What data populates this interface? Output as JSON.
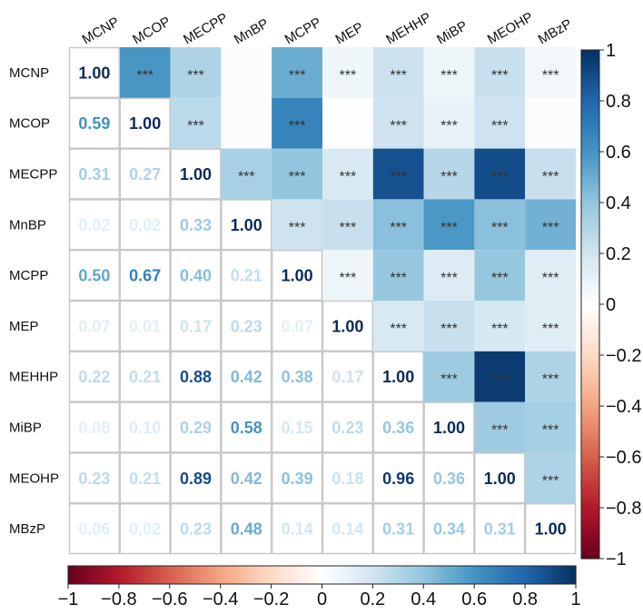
{
  "chart_data": {
    "type": "heatmap",
    "variables": [
      "MCNP",
      "MCOP",
      "MECPP",
      "MnBP",
      "MCPP",
      "MEP",
      "MEHHP",
      "MiBP",
      "MEOHP",
      "MBzP"
    ],
    "correlation_matrix": [
      [
        1.0,
        0.59,
        0.31,
        0.02,
        0.5,
        0.07,
        0.22,
        0.08,
        0.23,
        0.06
      ],
      [
        0.59,
        1.0,
        0.27,
        0.02,
        0.67,
        0.01,
        0.21,
        0.1,
        0.21,
        0.02
      ],
      [
        0.31,
        0.27,
        1.0,
        0.33,
        0.4,
        0.17,
        0.88,
        0.29,
        0.89,
        0.23
      ],
      [
        0.02,
        0.02,
        0.33,
        1.0,
        0.21,
        0.23,
        0.42,
        0.58,
        0.42,
        0.48
      ],
      [
        0.5,
        0.67,
        0.4,
        0.21,
        1.0,
        0.07,
        0.38,
        0.15,
        0.39,
        0.14
      ],
      [
        0.07,
        0.01,
        0.17,
        0.23,
        0.07,
        1.0,
        0.17,
        0.23,
        0.18,
        0.14
      ],
      [
        0.22,
        0.21,
        0.88,
        0.42,
        0.38,
        0.17,
        1.0,
        0.36,
        0.96,
        0.31
      ],
      [
        0.08,
        0.1,
        0.29,
        0.58,
        0.15,
        0.23,
        0.36,
        1.0,
        0.36,
        0.34
      ],
      [
        0.23,
        0.21,
        0.89,
        0.42,
        0.39,
        0.18,
        0.96,
        0.36,
        1.0,
        0.31
      ],
      [
        0.06,
        0.02,
        0.23,
        0.48,
        0.14,
        0.14,
        0.31,
        0.34,
        0.31,
        1.0
      ]
    ],
    "lower_triangle_labels": [
      [
        "1.00",
        "",
        "",
        "",
        "",
        "",
        "",
        "",
        "",
        ""
      ],
      [
        "0.59",
        "1.00",
        "",
        "",
        "",
        "",
        "",
        "",
        "",
        ""
      ],
      [
        "0.31",
        "0.27",
        "1.00",
        "",
        "",
        "",
        "",
        "",
        "",
        ""
      ],
      [
        "0.02",
        "0.02",
        "0.33",
        "1.00",
        "",
        "",
        "",
        "",
        "",
        ""
      ],
      [
        "0.50",
        "0.67",
        "0.40",
        "0.21",
        "1.00",
        "",
        "",
        "",
        "",
        ""
      ],
      [
        "0.07",
        "0.01",
        "0.17",
        "0.23",
        "0.07",
        "1.00",
        "",
        "",
        "",
        ""
      ],
      [
        "0.22",
        "0.21",
        "0.88",
        "0.42",
        "0.38",
        "0.17",
        "1.00",
        "",
        "",
        ""
      ],
      [
        "0.08",
        "0.10",
        "0.29",
        "0.58",
        "0.15",
        "0.23",
        "0.36",
        "1.00",
        "",
        ""
      ],
      [
        "0.23",
        "0.21",
        "0.89",
        "0.42",
        "0.39",
        "0.18",
        "0.96",
        "0.36",
        "1.00",
        ""
      ],
      [
        "0.06",
        "0.02",
        "0.23",
        "0.48",
        "0.14",
        "0.14",
        "0.31",
        "0.34",
        "0.31",
        "1.00"
      ]
    ],
    "significance_labels": [
      [
        "",
        "***",
        "***",
        "",
        "***",
        "***",
        "***",
        "***",
        "***",
        "***"
      ],
      [
        "",
        "",
        "***",
        "",
        "***",
        "",
        "***",
        "***",
        "***",
        ""
      ],
      [
        "",
        "",
        "",
        "***",
        "***",
        "***",
        "***",
        "***",
        "***",
        "***"
      ],
      [
        "",
        "",
        "",
        "",
        "***",
        "***",
        "***",
        "***",
        "***",
        "***"
      ],
      [
        "",
        "",
        "",
        "",
        "",
        "***",
        "***",
        "***",
        "***",
        "***"
      ],
      [
        "",
        "",
        "",
        "",
        "",
        "",
        "***",
        "***",
        "***",
        "***"
      ],
      [
        "",
        "",
        "",
        "",
        "",
        "",
        "",
        "***",
        "***",
        "***"
      ],
      [
        "",
        "",
        "",
        "",
        "",
        "",
        "",
        "",
        "***",
        "***"
      ],
      [
        "",
        "",
        "",
        "",
        "",
        "",
        "",
        "",
        "",
        "***"
      ],
      [
        "",
        "",
        "",
        "",
        "",
        "",
        "",
        "",
        "",
        ""
      ]
    ],
    "colorbar_range": [
      -1,
      1
    ],
    "colorbar_right_ticks": [
      "1",
      "0.8",
      "0.6",
      "0.4",
      "0.2",
      "0",
      "−0.2",
      "−0.4",
      "−0.6",
      "−0.8",
      "−1"
    ],
    "colorbar_bottom_ticks": [
      "−1",
      "−0.8",
      "−0.6",
      "−0.4",
      "−0.2",
      "0",
      "0.2",
      "0.4",
      "0.6",
      "0.8",
      "1"
    ],
    "colorscale": [
      "#67001f",
      "#b2182b",
      "#d6604d",
      "#f4a582",
      "#fddbc7",
      "#ffffff",
      "#d1e5f0",
      "#92c5de",
      "#4393c3",
      "#2166ac",
      "#053061"
    ]
  }
}
